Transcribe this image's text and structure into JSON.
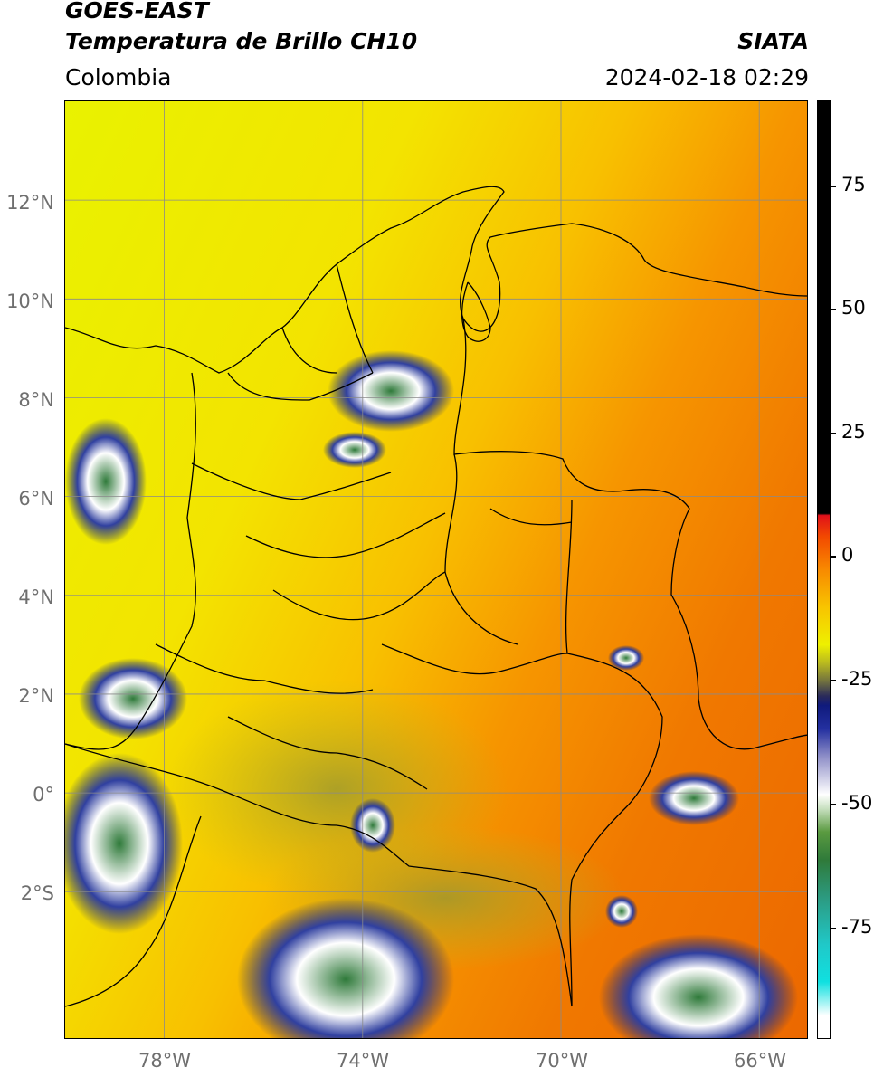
{
  "header": {
    "satellite": "GOES-EAST",
    "product": "Temperatura de Brillo CH10",
    "region": "Colombia",
    "organization": "SIATA",
    "timestamp": "2024-02-18 02:29"
  },
  "map": {
    "lat_ticks": [
      "12°N",
      "10°N",
      "8°N",
      "6°N",
      "4°N",
      "2°N",
      "0°",
      "2°S"
    ],
    "lon_ticks": [
      "78°W",
      "74°W",
      "70°W",
      "66°W"
    ],
    "extent": {
      "lon_min": -80.0,
      "lon_max": -65.0,
      "lat_min": -5.0,
      "lat_max": 14.0
    },
    "gridlines": true
  },
  "colorbar": {
    "ticks": [
      "75",
      "50",
      "25",
      "0",
      "-25",
      "-50",
      "-75"
    ],
    "units_range": [
      -100,
      90
    ],
    "colors": {
      "warm": "#000000",
      "zero": "#e0101a",
      "mid": "#f8c400",
      "cold": "#0f1a7c",
      "coldest": "#10e0e0"
    }
  }
}
